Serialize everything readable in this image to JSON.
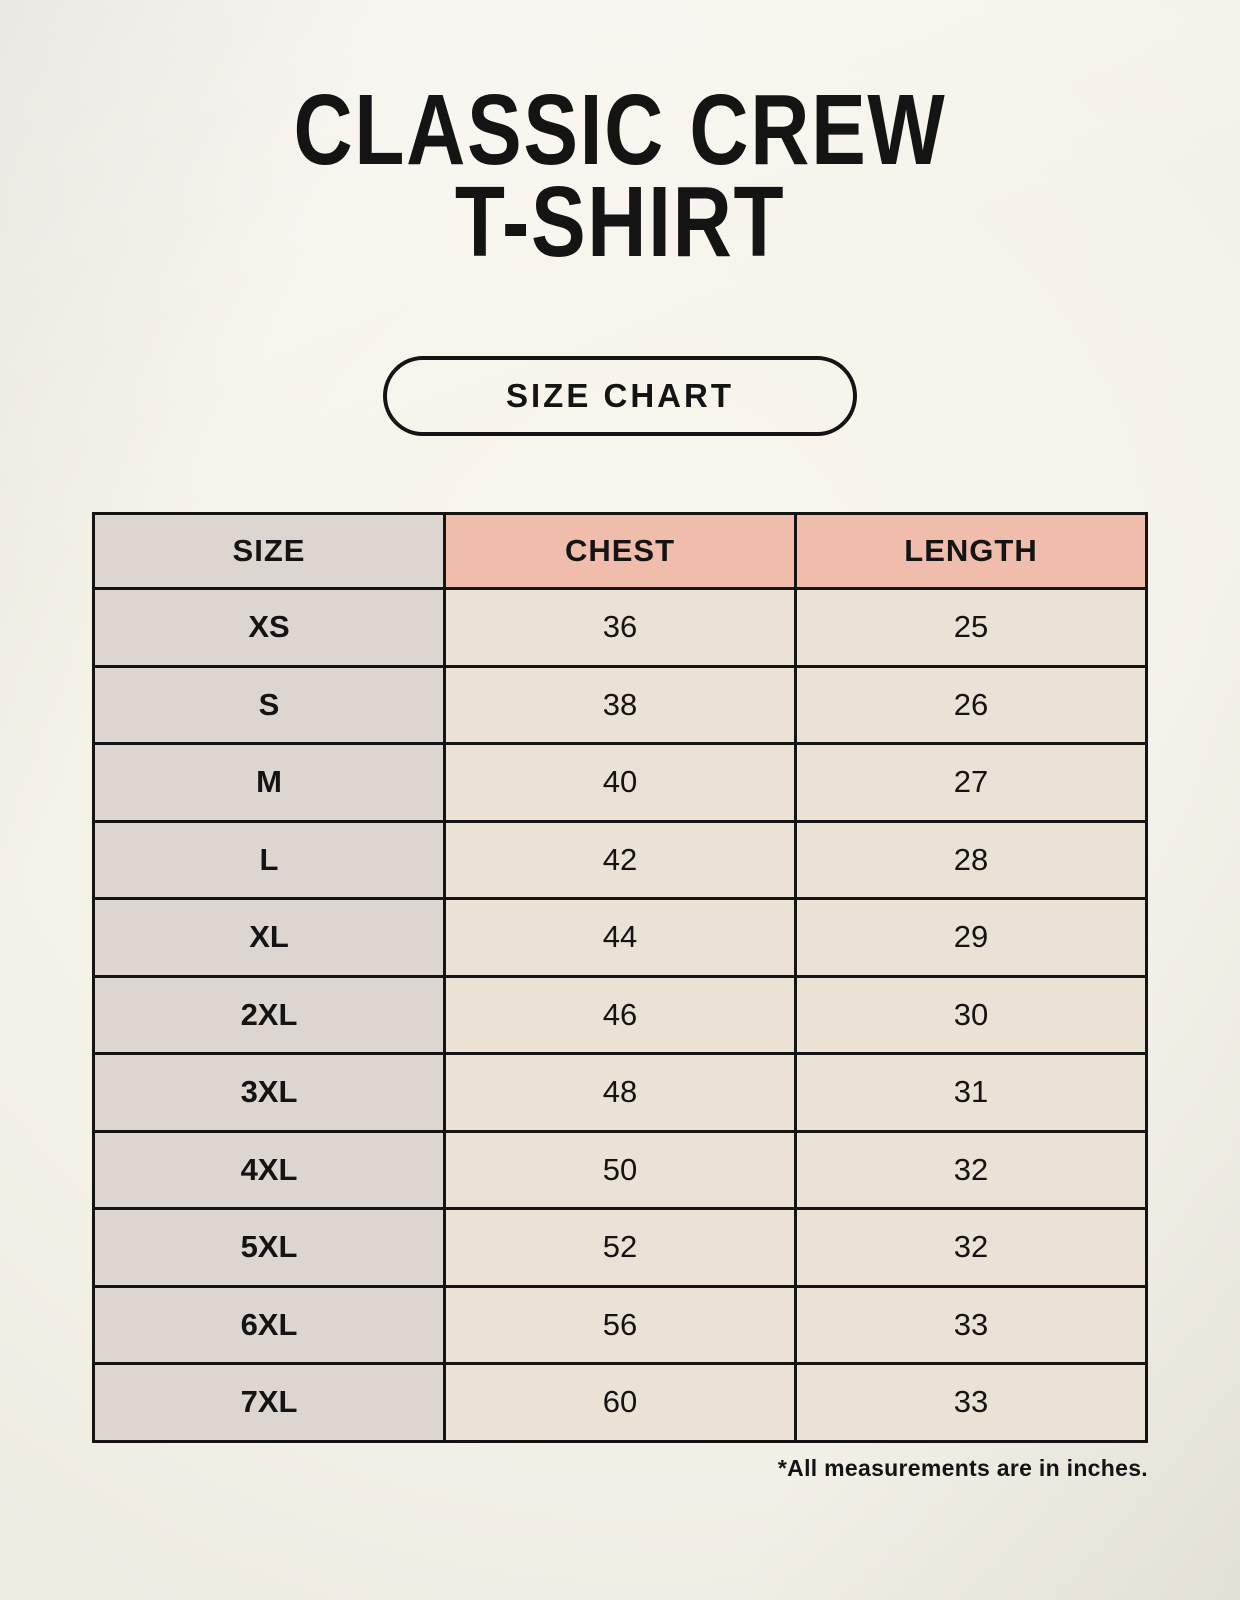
{
  "header": {
    "title_line1": "CLASSIC CREW",
    "title_line2": "T-SHIRT",
    "badge_label": "SIZE CHART"
  },
  "footnote": "*All measurements are in inches.",
  "colors": {
    "text": "#141414",
    "table_border": "#141414",
    "size_column_bg": "#ddd6d0",
    "header_accent_bg": "#f0bcab",
    "data_cell_bg": "#e9e2d5",
    "background": "#f4f1e8"
  },
  "chart_data": {
    "type": "table",
    "title": "CLASSIC CREW T-SHIRT SIZE CHART",
    "columns": [
      "SIZE",
      "CHEST",
      "LENGTH"
    ],
    "rows": [
      [
        "XS",
        "36",
        "25"
      ],
      [
        "S",
        "38",
        "26"
      ],
      [
        "M",
        "40",
        "27"
      ],
      [
        "L",
        "42",
        "28"
      ],
      [
        "XL",
        "44",
        "29"
      ],
      [
        "2XL",
        "46",
        "30"
      ],
      [
        "3XL",
        "48",
        "31"
      ],
      [
        "4XL",
        "50",
        "32"
      ],
      [
        "5XL",
        "52",
        "32"
      ],
      [
        "6XL",
        "56",
        "33"
      ],
      [
        "7XL",
        "60",
        "33"
      ]
    ],
    "units": "inches"
  }
}
